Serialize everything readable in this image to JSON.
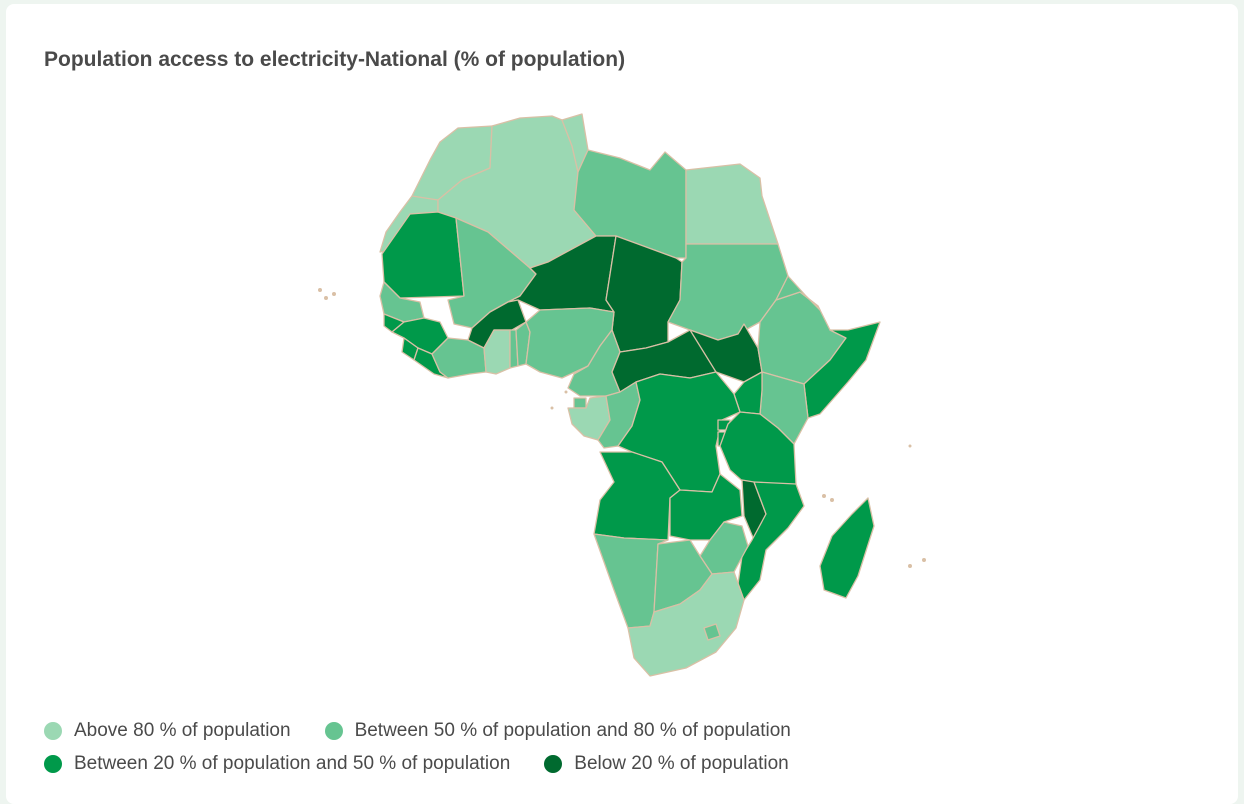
{
  "title": "Population access to electricity-National (% of population)",
  "colors": {
    "above80": "#9bd8b3",
    "between50_80": "#66c491",
    "between20_50": "#00994a",
    "below20": "#006a2f",
    "border": "#d9c0a6"
  },
  "legend": [
    {
      "key": "above80",
      "label": "Above 80 % of population"
    },
    {
      "key": "between50_80",
      "label": "Between 50 % of population and 80 % of population"
    },
    {
      "key": "between20_50",
      "label": "Between 20 % of population and 50 % of population"
    },
    {
      "key": "below20",
      "label": "Below 20 % of population"
    }
  ]
}
